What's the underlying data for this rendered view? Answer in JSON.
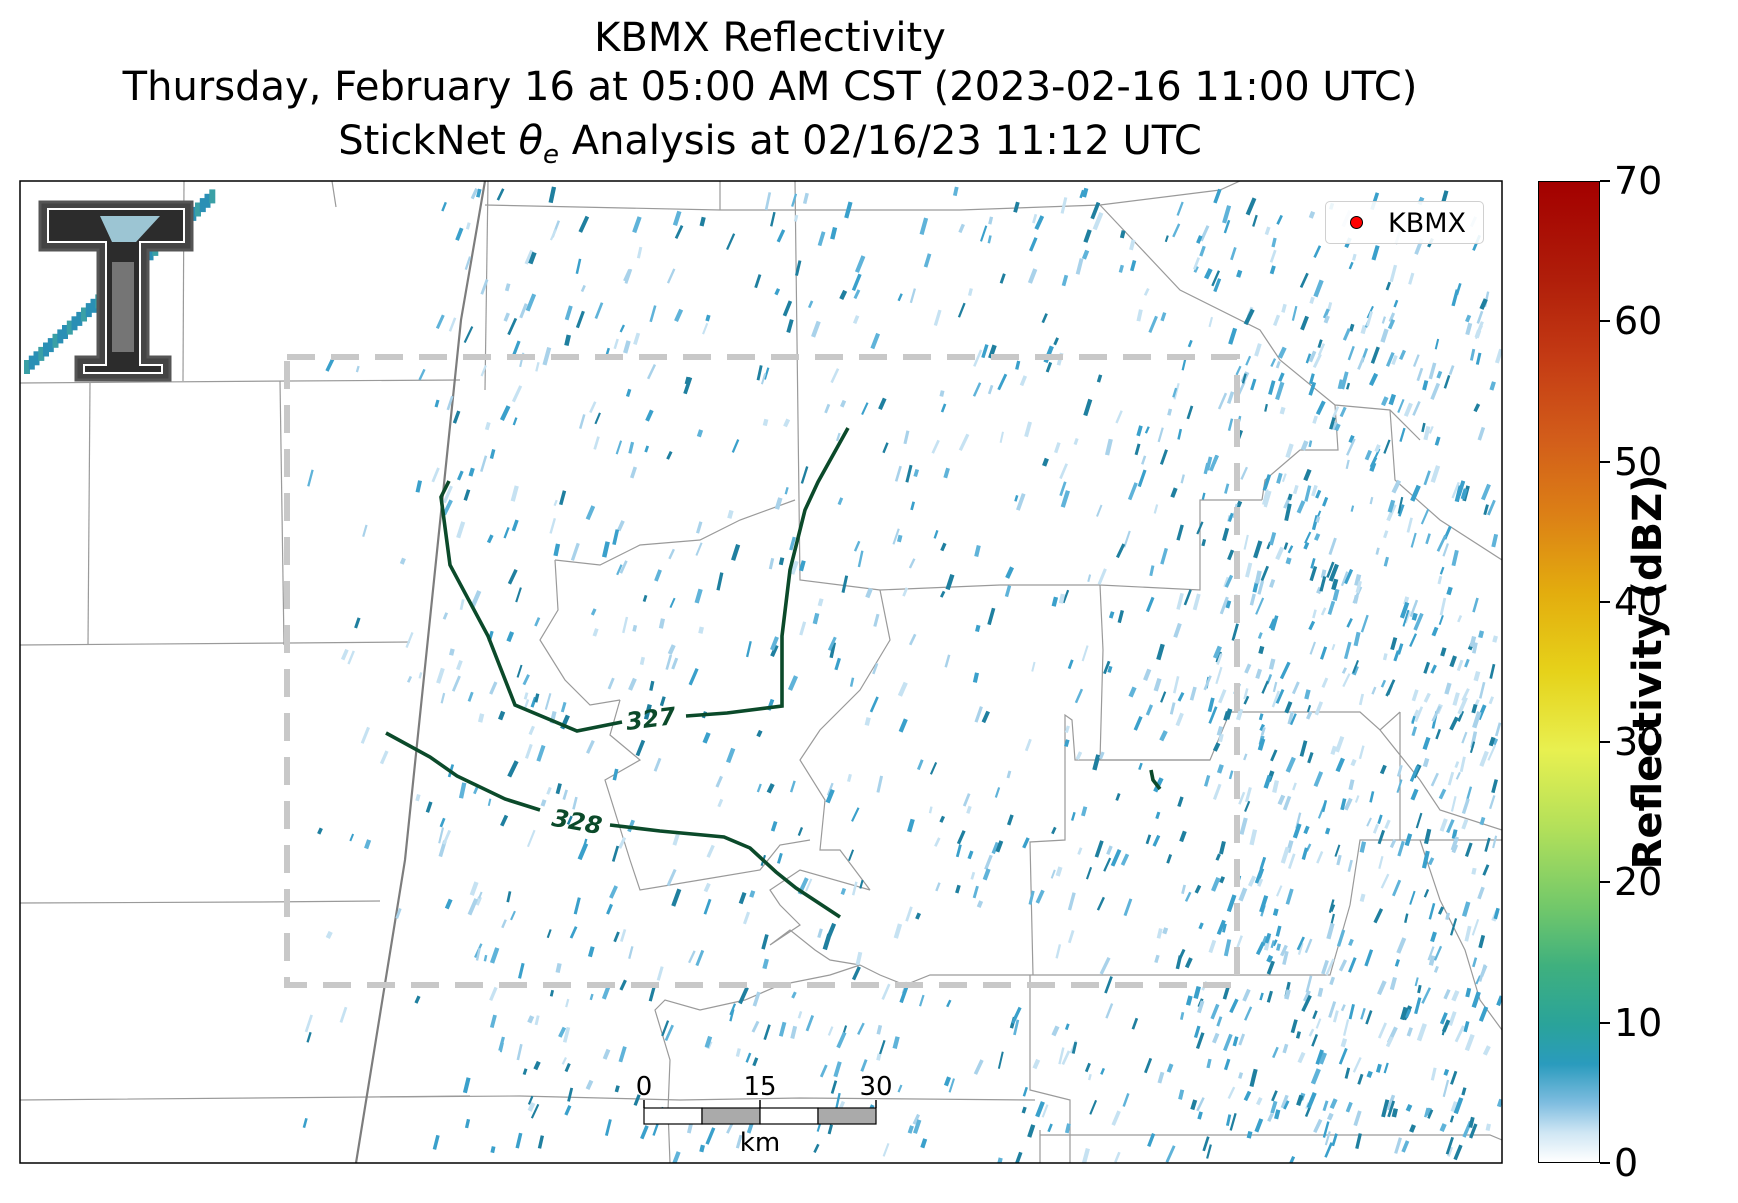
{
  "header": {
    "title_line1": "KBMX Reflectivity",
    "title_line2": "Thursday, February 16 at 05:00 AM CST (2023-02-16 11:00 UTC)",
    "title_line3_prefix": "StickNet ",
    "title_line3_symbol": "θ",
    "title_line3_sub": "e",
    "title_line3_suffix": " Analysis at 02/16/23 11:12 UTC"
  },
  "legend": {
    "label": "KBMX",
    "marker_color": "#ff0000"
  },
  "colorbar": {
    "label": "Reflectivity (dBZ)",
    "min": 0,
    "max": 70,
    "ticks": [
      "0",
      "10",
      "20",
      "30",
      "40",
      "50",
      "60",
      "70"
    ]
  },
  "contours": [
    {
      "label": "327",
      "color": "#0b4a2a"
    },
    {
      "label": "328",
      "color": "#0b4a2a"
    }
  ],
  "scale_bar": {
    "ticks": [
      "0",
      "15",
      "30"
    ],
    "unit": "km"
  },
  "logo": {
    "name": "Texas Tech Double T"
  },
  "colors": {
    "contour": "#0b4a2a",
    "analysis_box": "#c8c8c8",
    "county_lines": "#9a9a9a",
    "echo_light": "#a9d2ea",
    "echo_mid": "#3aa0cb",
    "echo_dark": "#1f7f9f"
  }
}
